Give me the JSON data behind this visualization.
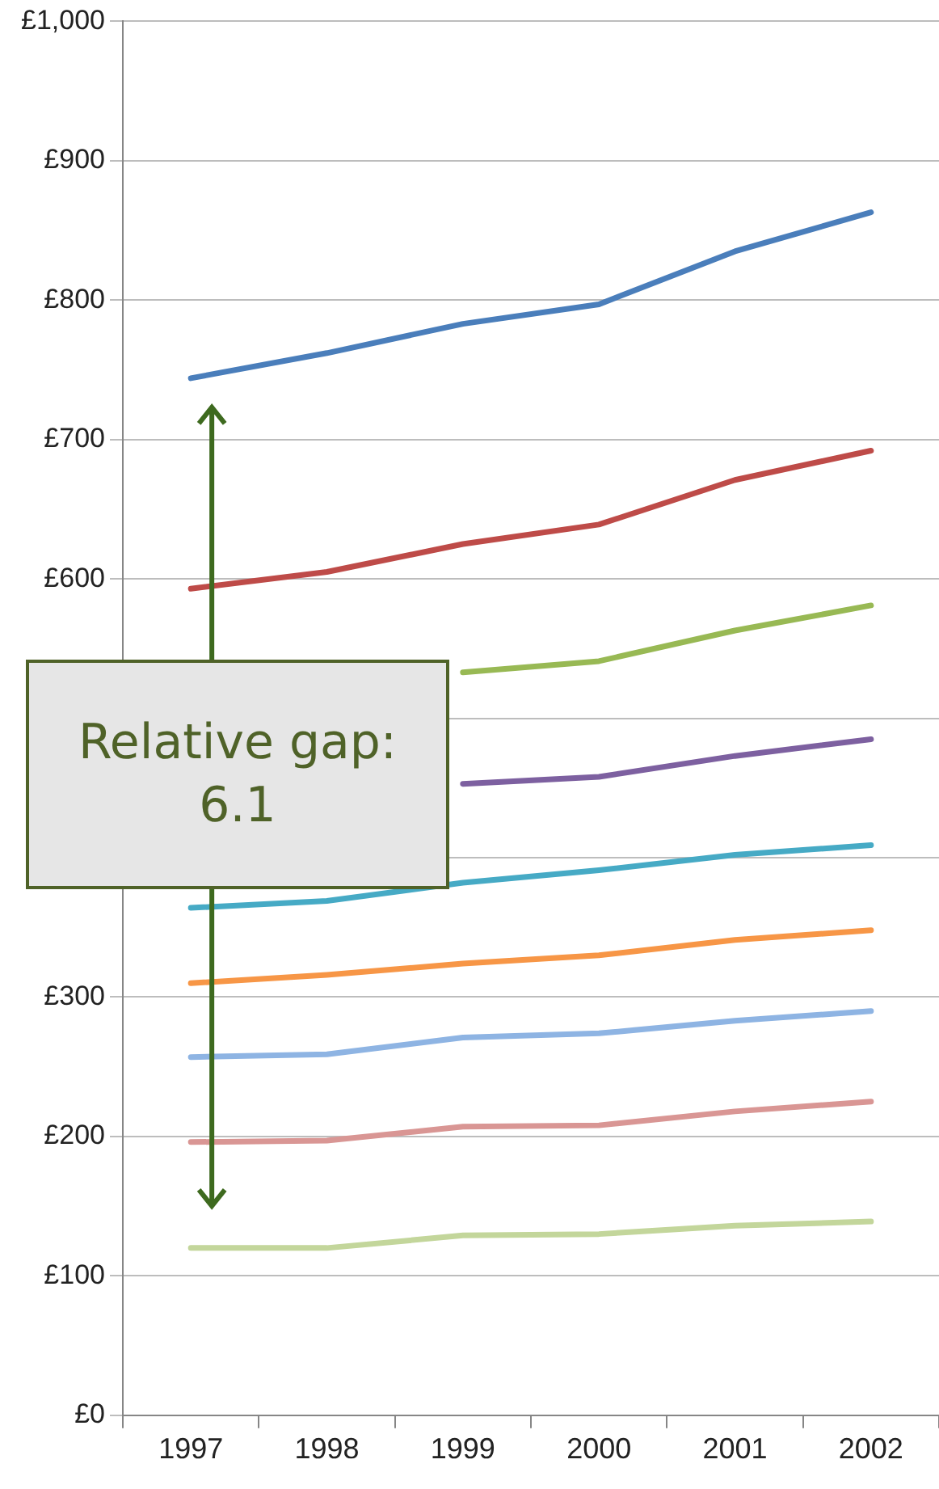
{
  "chart_data": {
    "type": "line",
    "categories": [
      "1997",
      "1998",
      "1999",
      "2000",
      "2001",
      "2002"
    ],
    "series": [
      {
        "color": "#4a7ebb",
        "values": [
          744,
          762,
          783,
          797,
          835,
          863
        ]
      },
      {
        "color": "#be4b48",
        "values": [
          593,
          605,
          625,
          639,
          671,
          692
        ]
      },
      {
        "color": "#98b954",
        "values": [
          null,
          null,
          533,
          541,
          563,
          581
        ]
      },
      {
        "color": "#7d60a0",
        "values": [
          null,
          null,
          453,
          458,
          473,
          485
        ]
      },
      {
        "color": "#46aac5",
        "values": [
          364,
          369,
          382,
          391,
          402,
          409
        ]
      },
      {
        "color": "#f79646",
        "values": [
          310,
          316,
          324,
          330,
          341,
          348
        ]
      },
      {
        "color": "#8eb4e3",
        "values": [
          257,
          259,
          271,
          274,
          283,
          290
        ]
      },
      {
        "color": "#d99694",
        "values": [
          196,
          197,
          207,
          208,
          218,
          225
        ]
      },
      {
        "color": "#c3d69b",
        "values": [
          120,
          120,
          129,
          130,
          136,
          139
        ]
      }
    ],
    "ylim": [
      0,
      1000
    ],
    "yticks": [
      {
        "value": 0,
        "label": "£0"
      },
      {
        "value": 100,
        "label": "£100"
      },
      {
        "value": 200,
        "label": "£200"
      },
      {
        "value": 300,
        "label": "£300"
      },
      {
        "value": 400,
        "label": null
      },
      {
        "value": 500,
        "label": null
      },
      {
        "value": 600,
        "label": "£600"
      },
      {
        "value": 700,
        "label": "£700"
      },
      {
        "value": 800,
        "label": "£800"
      },
      {
        "value": 900,
        "label": "£900"
      },
      {
        "value": 1000,
        "label": "£1,000"
      }
    ],
    "grid": "y",
    "legend": false,
    "marker": "none",
    "line_style": "solid",
    "annotations": [
      "Relative gap: 6.1"
    ]
  }
}
